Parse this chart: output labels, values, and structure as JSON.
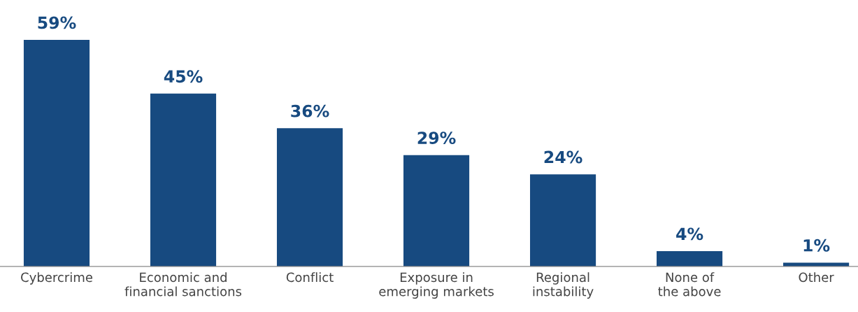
{
  "chart_data": {
    "type": "bar",
    "categories": [
      "Cybercrime",
      "Economic and\nfinancial sanctions",
      "Conflict",
      "Exposure in\nemerging markets",
      "Regional\ninstability",
      "None of\nthe above",
      "Other"
    ],
    "values": [
      59,
      45,
      36,
      29,
      24,
      4,
      1
    ],
    "value_labels": [
      "59%",
      "45%",
      "36%",
      "29%",
      "24%",
      "4%",
      "1%"
    ],
    "color": "#174a80"
  }
}
